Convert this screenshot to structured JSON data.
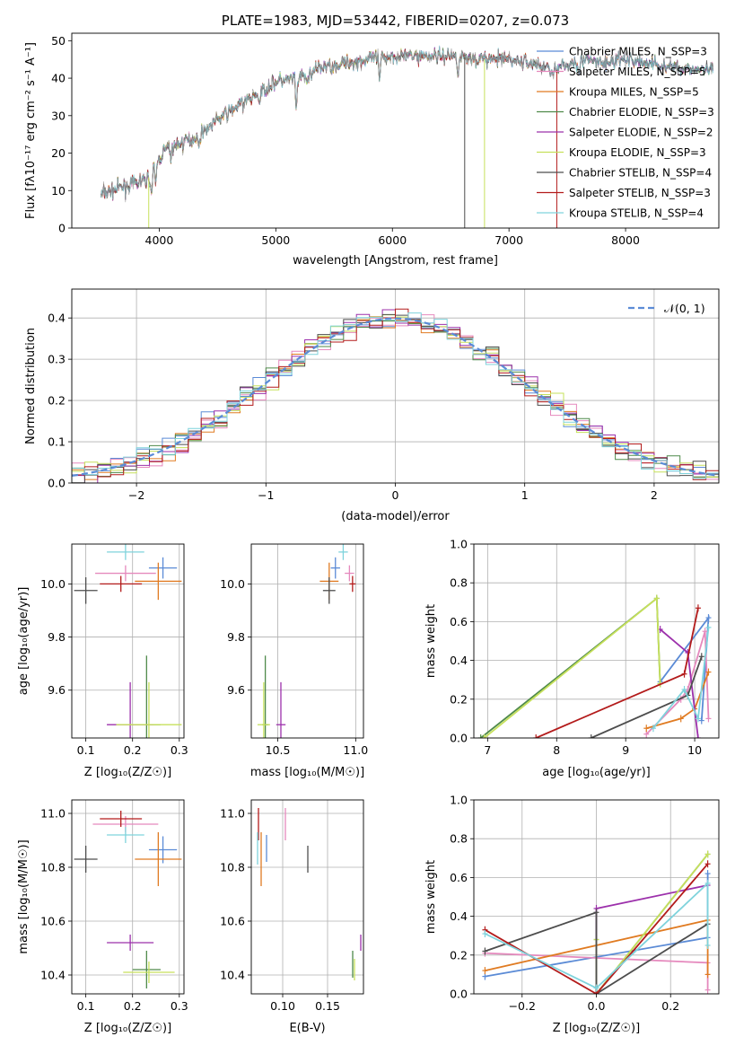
{
  "colors": {
    "chabrier_miles": "#5b8bd6",
    "salpeter_miles": "#e589bd",
    "kroupa_miles": "#e07b22",
    "chabrier_elodie": "#4f8a4a",
    "salpeter_elodie": "#9c30ab",
    "kroupa_elodie": "#c6e05b",
    "chabrier_stelib": "#4d4d4d",
    "salpeter_stelib": "#b31b1b",
    "kroupa_stelib": "#7fd3dc"
  },
  "chart_data": [
    {
      "id": "spectrum",
      "type": "line",
      "title": "PLATE=1983, MJD=53442, FIBERID=0207, z=0.073",
      "xlabel": "wavelength [Angstrom, rest frame]",
      "ylabel": "Flux [fλ10⁻¹⁷ erg cm⁻² s⁻¹ A⁻¹]",
      "xlim": [
        3250,
        8800
      ],
      "ylim": [
        0,
        52
      ],
      "xticks": [
        "4000",
        "5000",
        "6000",
        "7000",
        "8000"
      ],
      "yticks": [
        "0",
        "10",
        "20",
        "30",
        "40",
        "50"
      ],
      "legend_position": "top-right",
      "legend": [
        {
          "label": "Chabrier MILES, N_SSP=3",
          "color_key": "chabrier_miles"
        },
        {
          "label": "Salpeter MILES, N_SSP=5",
          "color_key": "salpeter_miles"
        },
        {
          "label": "Kroupa MILES, N_SSP=5",
          "color_key": "kroupa_miles"
        },
        {
          "label": "Chabrier ELODIE, N_SSP=3",
          "color_key": "chabrier_elodie"
        },
        {
          "label": "Salpeter ELODIE, N_SSP=2",
          "color_key": "salpeter_elodie"
        },
        {
          "label": "Kroupa ELODIE, N_SSP=3",
          "color_key": "kroupa_elodie"
        },
        {
          "label": "Chabrier STELIB, N_SSP=4",
          "color_key": "chabrier_stelib"
        },
        {
          "label": "Salpeter STELIB, N_SSP=3",
          "color_key": "salpeter_stelib"
        },
        {
          "label": "Kroupa STELIB, N_SSP=4",
          "color_key": "kroupa_stelib"
        }
      ],
      "continuum": [
        [
          3500,
          9
        ],
        [
          3700,
          11
        ],
        [
          3900,
          13
        ],
        [
          4050,
          21
        ],
        [
          4300,
          24
        ],
        [
          4500,
          29
        ],
        [
          4800,
          35
        ],
        [
          5000,
          39
        ],
        [
          5200,
          40
        ],
        [
          5400,
          43
        ],
        [
          5600,
          44
        ],
        [
          5800,
          45
        ],
        [
          6000,
          46
        ],
        [
          6200,
          46
        ],
        [
          6500,
          46
        ],
        [
          6800,
          45
        ],
        [
          7000,
          45
        ],
        [
          7200,
          44
        ],
        [
          7400,
          42
        ],
        [
          7600,
          45
        ],
        [
          7800,
          44
        ],
        [
          8000,
          45
        ],
        [
          8200,
          44
        ],
        [
          8400,
          43
        ],
        [
          8750,
          42
        ]
      ]
    },
    {
      "id": "residuals",
      "type": "area",
      "xlabel": "(data-model)/error",
      "ylabel": "Normed distribution",
      "xlim": [
        -2.5,
        2.5
      ],
      "ylim": [
        0,
        0.47
      ],
      "xticks": [
        "−2",
        "−1",
        "0",
        "1",
        "2"
      ],
      "yticks": [
        "0.0",
        "0.1",
        "0.2",
        "0.3",
        "0.4"
      ],
      "grid": true,
      "legend_position": "top-right",
      "legend": [
        {
          "label": "𝒩(0, 1)",
          "style": "dashed"
        }
      ]
    },
    {
      "id": "age_vs_z",
      "type": "scatter",
      "xlabel": "Z [log₁₀(Z/Z☉)]",
      "ylabel": "age  [log₁₀(age/yr)]",
      "xlim": [
        0.07,
        0.31
      ],
      "ylim": [
        9.42,
        10.15
      ],
      "xticks": [
        "0.1",
        "0.2",
        "0.3"
      ],
      "yticks": [
        "9.6",
        "9.8",
        "10.0"
      ],
      "grid": true,
      "points": [
        {
          "s": "chabrier_miles",
          "x": 0.265,
          "y": 10.06,
          "xe": 0.03,
          "ye": 0.04
        },
        {
          "s": "salpeter_miles",
          "x": 0.185,
          "y": 10.04,
          "xe": 0.065,
          "ye": 0.03
        },
        {
          "s": "kroupa_miles",
          "x": 0.255,
          "y": 10.01,
          "xe": 0.05,
          "ye": 0.07
        },
        {
          "s": "chabrier_elodie",
          "x": 0.23,
          "y": 9.47,
          "xe": 0.03,
          "ye": 0.26
        },
        {
          "s": "salpeter_elodie",
          "x": 0.195,
          "y": 9.47,
          "xe": 0.05,
          "ye": 0.16
        },
        {
          "s": "kroupa_elodie",
          "x": 0.235,
          "y": 9.47,
          "xe": 0.07,
          "ye": 0.16
        },
        {
          "s": "chabrier_stelib",
          "x": 0.1,
          "y": 9.975,
          "xe": 0.025,
          "ye": 0.05
        },
        {
          "s": "salpeter_stelib",
          "x": 0.175,
          "y": 10.0,
          "xe": 0.045,
          "ye": 0.03
        },
        {
          "s": "kroupa_stelib",
          "x": 0.185,
          "y": 10.12,
          "xe": 0.04,
          "ye": 0.03
        }
      ]
    },
    {
      "id": "age_vs_mass",
      "type": "scatter",
      "xlabel": "mass [log₁₀(M/M☉)]",
      "ylabel": "",
      "xlim": [
        10.33,
        11.05
      ],
      "ylim": [
        9.42,
        10.15
      ],
      "xticks": [
        "10.5",
        "11.0"
      ],
      "yticks": [
        "9.6",
        "9.8",
        "10.0"
      ],
      "grid": true,
      "points": [
        {
          "s": "chabrier_miles",
          "x": 10.87,
          "y": 10.06,
          "xe": 0.03,
          "ye": 0.04
        },
        {
          "s": "salpeter_miles",
          "x": 10.96,
          "y": 10.04,
          "xe": 0.03,
          "ye": 0.03
        },
        {
          "s": "kroupa_miles",
          "x": 10.83,
          "y": 10.01,
          "xe": 0.06,
          "ye": 0.07
        },
        {
          "s": "chabrier_elodie",
          "x": 10.42,
          "y": 9.47,
          "xe": 0.02,
          "ye": 0.26
        },
        {
          "s": "salpeter_elodie",
          "x": 10.52,
          "y": 9.47,
          "xe": 0.03,
          "ye": 0.16
        },
        {
          "s": "kroupa_elodie",
          "x": 10.41,
          "y": 9.47,
          "xe": 0.04,
          "ye": 0.16
        },
        {
          "s": "chabrier_stelib",
          "x": 10.83,
          "y": 9.975,
          "xe": 0.04,
          "ye": 0.05
        },
        {
          "s": "salpeter_stelib",
          "x": 10.98,
          "y": 10.0,
          "xe": 0.02,
          "ye": 0.03
        },
        {
          "s": "kroupa_stelib",
          "x": 10.92,
          "y": 10.12,
          "xe": 0.03,
          "ye": 0.03
        }
      ]
    },
    {
      "id": "weight_vs_age",
      "type": "line",
      "xlabel": "age  [log₁₀(age/yr)]",
      "ylabel": "mass weight",
      "xlim": [
        6.8,
        10.35
      ],
      "ylim": [
        0,
        1.0
      ],
      "xticks": [
        "7",
        "8",
        "9",
        "10"
      ],
      "yticks": [
        "0.0",
        "0.2",
        "0.4",
        "0.6",
        "0.8",
        "1.0"
      ],
      "grid": true,
      "series": [
        {
          "s": "chabrier_miles",
          "x": [
            9.5,
            10.2,
            10.1
          ],
          "y": [
            0.29,
            0.62,
            0.09
          ]
        },
        {
          "s": "salpeter_miles",
          "x": [
            9.3,
            9.8,
            9.9,
            10.15,
            10.2
          ],
          "y": [
            0.02,
            0.2,
            0.25,
            0.55,
            0.1
          ]
        },
        {
          "s": "kroupa_miles",
          "x": [
            9.3,
            9.8,
            10.0,
            10.2
          ],
          "y": [
            0.05,
            0.1,
            0.15,
            0.34
          ]
        },
        {
          "s": "chabrier_elodie",
          "x": [
            6.9,
            9.45,
            9.5
          ],
          "y": [
            0.0,
            0.72,
            0.28
          ]
        },
        {
          "s": "salpeter_elodie",
          "x": [
            9.5,
            9.9,
            10.05
          ],
          "y": [
            0.56,
            0.44,
            0.0
          ]
        },
        {
          "s": "kroupa_elodie",
          "x": [
            6.95,
            9.45,
            9.5
          ],
          "y": [
            0.0,
            0.72,
            0.28
          ]
        },
        {
          "s": "chabrier_stelib",
          "x": [
            8.5,
            9.9,
            10.1
          ],
          "y": [
            0.0,
            0.22,
            0.42
          ]
        },
        {
          "s": "salpeter_stelib",
          "x": [
            7.7,
            9.85,
            10.05
          ],
          "y": [
            0.0,
            0.33,
            0.67
          ]
        },
        {
          "s": "kroupa_stelib",
          "x": [
            9.4,
            9.85,
            10.05,
            10.2
          ],
          "y": [
            0.05,
            0.25,
            0.1,
            0.57
          ]
        }
      ]
    },
    {
      "id": "mass_vs_z",
      "type": "scatter",
      "xlabel": "Z [log₁₀(Z/Z☉)]",
      "ylabel": "mass [log₁₀(M/M☉)]",
      "xlim": [
        0.07,
        0.31
      ],
      "ylim": [
        10.33,
        11.05
      ],
      "xticks": [
        "0.1",
        "0.2",
        "0.3"
      ],
      "yticks": [
        "10.4",
        "10.6",
        "10.8",
        "11.0"
      ],
      "grid": true,
      "points": [
        {
          "s": "chabrier_miles",
          "x": 0.265,
          "y": 10.865,
          "xe": 0.03,
          "ye": 0.05
        },
        {
          "s": "salpeter_miles",
          "x": 0.185,
          "y": 10.96,
          "xe": 0.07,
          "ye": 0.03
        },
        {
          "s": "kroupa_miles",
          "x": 0.255,
          "y": 10.83,
          "xe": 0.05,
          "ye": 0.1
        },
        {
          "s": "chabrier_elodie",
          "x": 0.23,
          "y": 10.42,
          "xe": 0.03,
          "ye": 0.07
        },
        {
          "s": "salpeter_elodie",
          "x": 0.195,
          "y": 10.52,
          "xe": 0.05,
          "ye": 0.03
        },
        {
          "s": "kroupa_elodie",
          "x": 0.235,
          "y": 10.41,
          "xe": 0.055,
          "ye": 0.04
        },
        {
          "s": "chabrier_stelib",
          "x": 0.1,
          "y": 10.83,
          "xe": 0.025,
          "ye": 0.05
        },
        {
          "s": "salpeter_stelib",
          "x": 0.175,
          "y": 10.98,
          "xe": 0.045,
          "ye": 0.03
        },
        {
          "s": "kroupa_stelib",
          "x": 0.185,
          "y": 10.92,
          "xe": 0.04,
          "ye": 0.03
        }
      ]
    },
    {
      "id": "mass_vs_ebv",
      "type": "scatter",
      "xlabel": "E(B-V)",
      "ylabel": "",
      "xlim": [
        0.065,
        0.19
      ],
      "ylim": [
        10.33,
        11.05
      ],
      "xticks": [
        "0.10",
        "0.15"
      ],
      "yticks": [
        "10.4",
        "10.6",
        "10.8",
        "11.0"
      ],
      "grid": true,
      "points": [
        {
          "s": "chabrier_miles",
          "x": 0.082,
          "y": 10.87,
          "xe": 0.0,
          "ye": 0.05
        },
        {
          "s": "salpeter_miles",
          "x": 0.103,
          "y": 10.96,
          "xe": 0.0,
          "ye": 0.06
        },
        {
          "s": "kroupa_miles",
          "x": 0.076,
          "y": 10.83,
          "xe": 0.0,
          "ye": 0.1
        },
        {
          "s": "chabrier_elodie",
          "x": 0.178,
          "y": 10.44,
          "xe": 0.0,
          "ye": 0.05
        },
        {
          "s": "salpeter_elodie",
          "x": 0.187,
          "y": 10.52,
          "xe": 0.0,
          "ye": 0.03
        },
        {
          "s": "kroupa_elodie",
          "x": 0.18,
          "y": 10.42,
          "xe": 0.0,
          "ye": 0.04
        },
        {
          "s": "chabrier_stelib",
          "x": 0.128,
          "y": 10.83,
          "xe": 0.0,
          "ye": 0.05
        },
        {
          "s": "salpeter_stelib",
          "x": 0.073,
          "y": 10.96,
          "xe": 0.0,
          "ye": 0.06
        },
        {
          "s": "kroupa_stelib",
          "x": 0.072,
          "y": 10.87,
          "xe": 0.0,
          "ye": 0.06
        }
      ]
    },
    {
      "id": "weight_vs_z",
      "type": "line",
      "xlabel": "Z [log₁₀(Z/Z☉)]",
      "ylabel": "mass weight",
      "xlim": [
        -0.33,
        0.33
      ],
      "ylim": [
        0,
        1.0
      ],
      "xticks": [
        "−0.2",
        "0.0",
        "0.2"
      ],
      "yticks": [
        "0.0",
        "0.2",
        "0.4",
        "0.6",
        "0.8",
        "1.0"
      ],
      "grid": true,
      "series": [
        {
          "s": "chabrier_miles",
          "x": [
            -0.3,
            0.3,
            0.3
          ],
          "y": [
            0.09,
            0.29,
            0.62
          ]
        },
        {
          "s": "salpeter_miles",
          "x": [
            -0.3,
            0.3,
            0.3
          ],
          "y": [
            0.21,
            0.16,
            0.02
          ]
        },
        {
          "s": "kroupa_miles",
          "x": [
            -0.3,
            0.3,
            0.3
          ],
          "y": [
            0.12,
            0.38,
            0.1
          ]
        },
        {
          "s": "chabrier_elodie",
          "x": [
            0.0,
            0.0,
            0.3
          ],
          "y": [
            0.28,
            0.0,
            0.72
          ]
        },
        {
          "s": "salpeter_elodie",
          "x": [
            0.0,
            0.0,
            0.3
          ],
          "y": [
            0.0,
            0.44,
            0.56
          ]
        },
        {
          "s": "kroupa_elodie",
          "x": [
            0.0,
            0.0,
            0.3
          ],
          "y": [
            0.28,
            0.0,
            0.72
          ]
        },
        {
          "s": "chabrier_stelib",
          "x": [
            -0.3,
            0.0,
            0.0,
            0.3
          ],
          "y": [
            0.22,
            0.42,
            0.0,
            0.36
          ]
        },
        {
          "s": "salpeter_stelib",
          "x": [
            -0.3,
            0.0,
            0.3
          ],
          "y": [
            0.33,
            0.0,
            0.67
          ]
        },
        {
          "s": "kroupa_stelib",
          "x": [
            -0.3,
            0.0,
            0.3,
            0.3
          ],
          "y": [
            0.31,
            0.03,
            0.57,
            0.25
          ]
        }
      ]
    }
  ]
}
